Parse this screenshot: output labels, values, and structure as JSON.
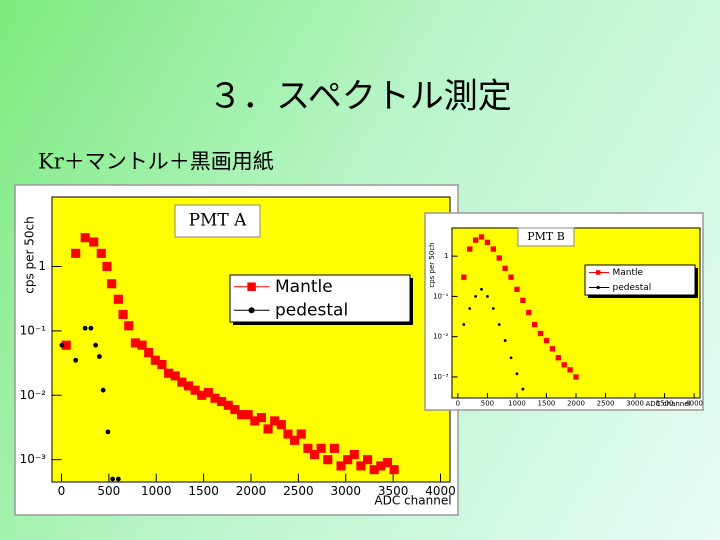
{
  "slide": {
    "title": "３．スペクトル測定",
    "subtitle": "Kr＋マントル＋黒画用紙"
  },
  "chart_data": [
    {
      "type": "scatter",
      "title": "PMT A",
      "x_label": "ADC channel",
      "y_label": "cps per 50ch",
      "log_y": true,
      "legend": "upper right",
      "xlim": [
        -100,
        4100
      ],
      "xticks": [
        0,
        500,
        1000,
        1500,
        2000,
        2500,
        3000,
        3500,
        4000
      ],
      "ylim": [
        0.00045,
        12
      ],
      "yticks": [
        1,
        {
          "value": 0.1,
          "label": "10⁻¹"
        },
        {
          "value": 0.01,
          "label": "10⁻²"
        },
        {
          "value": 0.001,
          "label": "10⁻³"
        }
      ],
      "series": [
        {
          "name": "Mantle",
          "color": "#ff0000",
          "marker": "square",
          "x": [
            50,
            150,
            250,
            340,
            420,
            480,
            530,
            600,
            650,
            710,
            780,
            850,
            920,
            990,
            1060,
            1130,
            1200,
            1270,
            1340,
            1410,
            1480,
            1550,
            1620,
            1690,
            1760,
            1830,
            1900,
            1970,
            2040,
            2110,
            2180,
            2250,
            2320,
            2390,
            2460,
            2530,
            2600,
            2670,
            2740,
            2810,
            2880,
            2950,
            3020,
            3090,
            3160,
            3230,
            3300,
            3370,
            3440,
            3510
          ],
          "values": [
            0.06,
            1.6,
            2.8,
            2.4,
            1.6,
            1.0,
            0.54,
            0.31,
            0.18,
            0.12,
            0.065,
            0.06,
            0.046,
            0.035,
            0.03,
            0.022,
            0.02,
            0.016,
            0.014,
            0.012,
            0.01,
            0.011,
            0.009,
            0.008,
            0.007,
            0.006,
            0.005,
            0.005,
            0.004,
            0.0045,
            0.003,
            0.004,
            0.0035,
            0.0025,
            0.002,
            0.0025,
            0.0015,
            0.0012,
            0.0015,
            0.001,
            0.0015,
            0.0008,
            0.001,
            0.0012,
            0.0008,
            0.001,
            0.0007,
            0.0008,
            0.0009,
            0.0007
          ]
        },
        {
          "name": "pedestal",
          "color": "#000000",
          "marker": "star",
          "x": [
            4,
            150,
            250,
            310,
            360,
            400,
            440,
            490,
            540,
            600
          ],
          "values": [
            0.06,
            0.035,
            0.11,
            0.11,
            0.06,
            0.04,
            0.012,
            0.0027,
            0.0005,
            0.0005
          ]
        }
      ]
    },
    {
      "type": "scatter",
      "title": "PMT B",
      "x_label": "ADC channel",
      "y_label": "cps per 50ch",
      "log_y": true,
      "legend": "upper right",
      "xlim": [
        -100,
        4100
      ],
      "xticks": [
        0,
        500,
        1000,
        1500,
        2000,
        2500,
        3000,
        3500,
        4000
      ],
      "ylim": [
        0.0003,
        5
      ],
      "yticks": [
        1,
        {
          "value": 0.1,
          "label": "10⁻¹"
        },
        {
          "value": 0.01,
          "label": "10⁻²"
        },
        {
          "value": 0.001,
          "label": "10⁻³"
        }
      ],
      "series": [
        {
          "name": "Mantle",
          "color": "#ff0000",
          "marker": "square",
          "x": [
            100,
            200,
            300,
            400,
            500,
            600,
            700,
            800,
            900,
            1000,
            1100,
            1200,
            1300,
            1400,
            1500,
            1600,
            1700,
            1800,
            1900,
            2000
          ],
          "values": [
            0.3,
            1.5,
            2.5,
            3,
            2.2,
            1.5,
            0.9,
            0.5,
            0.3,
            0.15,
            0.08,
            0.04,
            0.02,
            0.012,
            0.008,
            0.005,
            0.003,
            0.002,
            0.0015,
            0.001
          ]
        },
        {
          "name": "pedestal",
          "color": "#000000",
          "marker": "star",
          "x": [
            100,
            200,
            300,
            400,
            500,
            600,
            700,
            800,
            900,
            1000,
            1100
          ],
          "values": [
            0.02,
            0.05,
            0.1,
            0.15,
            0.1,
            0.05,
            0.02,
            0.008,
            0.003,
            0.0012,
            0.0005
          ]
        }
      ]
    }
  ]
}
